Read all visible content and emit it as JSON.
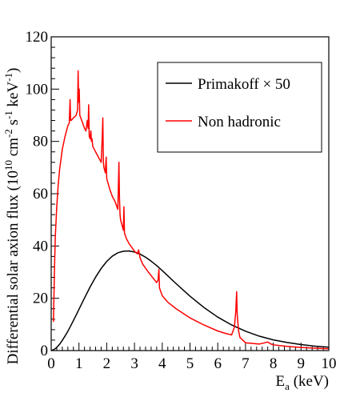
{
  "chart_data": {
    "type": "line",
    "title": "",
    "xlabel_main": "E",
    "xlabel_sub": "a",
    "xlabel_unit": " (keV)",
    "ylabel": {
      "prefix": "Differential solar axion flux (10",
      "exp1": "10",
      "mid1": " cm",
      "exp2": "-2",
      "mid2": " s",
      "exp3": "-1",
      "mid3": " keV",
      "exp4": "-1",
      "suffix": ")"
    },
    "xlim": [
      0,
      10
    ],
    "ylim": [
      0,
      120
    ],
    "xticks": [
      "0",
      "1",
      "2",
      "3",
      "4",
      "5",
      "6",
      "7",
      "8",
      "9",
      "10"
    ],
    "yticks": [
      "0",
      "20",
      "40",
      "60",
      "80",
      "100",
      "120"
    ],
    "grid": false,
    "legend_position": "top-right",
    "series": [
      {
        "name": "Primakoff × 50",
        "color": "#000000",
        "x": [
          0.0,
          0.1,
          0.2,
          0.3,
          0.4,
          0.5,
          0.6,
          0.7,
          0.8,
          0.9,
          1.0,
          1.2,
          1.4,
          1.6,
          1.8,
          2.0,
          2.2,
          2.4,
          2.6,
          2.8,
          3.0,
          3.2,
          3.4,
          3.6,
          3.8,
          4.0,
          4.5,
          5.0,
          5.5,
          6.0,
          6.5,
          7.0,
          7.5,
          8.0,
          8.5,
          9.0,
          9.5,
          10.0
        ],
        "y": [
          0.0,
          0.4,
          1.2,
          2.4,
          3.9,
          5.6,
          7.4,
          9.4,
          11.5,
          13.6,
          15.8,
          20.1,
          24.3,
          28.1,
          31.4,
          34.1,
          36.1,
          37.4,
          38.0,
          38.1,
          37.7,
          36.9,
          35.7,
          34.2,
          32.5,
          30.6,
          25.6,
          20.8,
          16.5,
          12.8,
          9.8,
          7.4,
          5.5,
          4.1,
          3.1,
          2.3,
          1.7,
          1.3
        ]
      },
      {
        "name": "Non hadronic",
        "color": "#ff0000",
        "x": [
          0.08,
          0.12,
          0.15,
          0.2,
          0.25,
          0.3,
          0.4,
          0.5,
          0.6,
          0.65,
          0.68,
          0.7,
          0.72,
          0.8,
          0.9,
          0.95,
          0.97,
          0.99,
          1.01,
          1.03,
          1.1,
          1.2,
          1.25,
          1.3,
          1.33,
          1.35,
          1.37,
          1.4,
          1.43,
          1.45,
          1.47,
          1.5,
          1.6,
          1.7,
          1.8,
          1.84,
          1.86,
          1.88,
          1.9,
          1.95,
          1.98,
          2.0,
          2.02,
          2.05,
          2.1,
          2.2,
          2.3,
          2.4,
          2.44,
          2.46,
          2.48,
          2.5,
          2.55,
          2.6,
          2.62,
          2.64,
          2.7,
          2.8,
          3.0,
          3.1,
          3.15,
          3.2,
          3.3,
          3.5,
          3.8,
          3.85,
          3.88,
          3.9,
          4.0,
          4.2,
          4.5,
          5.0,
          5.5,
          6.0,
          6.3,
          6.5,
          6.6,
          6.65,
          6.68,
          6.7,
          6.75,
          6.8,
          7.0,
          7.5,
          7.7,
          7.8,
          7.9,
          8.0,
          8.5,
          9.0,
          9.5,
          10.0
        ],
        "y": [
          11.0,
          32.0,
          44.0,
          55.0,
          63.0,
          69.0,
          77.0,
          82.0,
          86.0,
          87.0,
          96.0,
          88.0,
          88.0,
          89.0,
          90.0,
          92.0,
          107.0,
          95.0,
          100.0,
          90.0,
          88.0,
          85.0,
          84.0,
          88.0,
          85.0,
          94.0,
          82.0,
          81.0,
          84.0,
          80.0,
          81.0,
          78.0,
          76.0,
          74.0,
          72.0,
          82.0,
          89.0,
          72.0,
          70.0,
          68.0,
          74.0,
          66.0,
          65.0,
          64.0,
          62.0,
          59.0,
          57.0,
          54.0,
          72.0,
          58.0,
          52.0,
          50.0,
          48.0,
          46.0,
          55.0,
          45.0,
          43.0,
          41.0,
          38.0,
          37.0,
          38.5,
          35.5,
          33.0,
          30.0,
          26.0,
          27.0,
          31.0,
          24.0,
          21.0,
          18.5,
          16.0,
          12.5,
          9.8,
          7.5,
          6.5,
          6.0,
          9.0,
          15.0,
          22.5,
          14.0,
          7.5,
          5.0,
          3.0,
          2.5,
          3.0,
          3.3,
          2.6,
          2.2,
          1.6,
          1.2,
          0.9,
          0.7
        ]
      }
    ],
    "legend": [
      {
        "label": "Primakoff × 50",
        "color": "#000000"
      },
      {
        "label": "Non hadronic",
        "color": "#ff0000"
      }
    ]
  }
}
